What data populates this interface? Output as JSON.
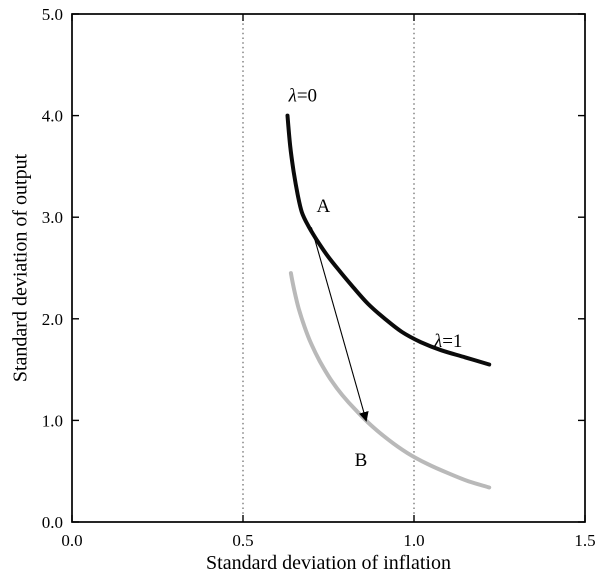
{
  "chart_data": {
    "type": "line",
    "title": "",
    "xlabel": "Standard deviation of inflation",
    "ylabel": "Standard deviation of output",
    "xlim": [
      0.0,
      1.5
    ],
    "ylim": [
      0.0,
      5.0
    ],
    "x_ticks": [
      0.0,
      0.5,
      1.0,
      1.5
    ],
    "x_tick_labels": [
      "0.0",
      "0.5",
      "1.0",
      "1.5"
    ],
    "y_ticks": [
      0.0,
      1.0,
      2.0,
      3.0,
      4.0,
      5.0
    ],
    "y_tick_labels": [
      "0.0",
      "1.0",
      "2.0",
      "3.0",
      "4.0",
      "5.0"
    ],
    "grid": {
      "vertical_dotted_at": [
        0.5,
        1.0
      ],
      "horizontal": false
    },
    "legend": "none",
    "axis_color": "#000000",
    "background": "#ffffff",
    "series": [
      {
        "name": "efficiency-frontier-black",
        "color": "#0b0b0b",
        "stroke_width": 4,
        "points": [
          [
            0.63,
            4.0
          ],
          [
            0.638,
            3.7
          ],
          [
            0.648,
            3.45
          ],
          [
            0.66,
            3.22
          ],
          [
            0.672,
            3.05
          ],
          [
            0.69,
            2.92
          ],
          [
            0.715,
            2.78
          ],
          [
            0.745,
            2.63
          ],
          [
            0.78,
            2.48
          ],
          [
            0.82,
            2.32
          ],
          [
            0.865,
            2.15
          ],
          [
            0.915,
            2.0
          ],
          [
            0.965,
            1.87
          ],
          [
            1.02,
            1.77
          ],
          [
            1.08,
            1.69
          ],
          [
            1.15,
            1.62
          ],
          [
            1.22,
            1.55
          ]
        ]
      },
      {
        "name": "improved-frontier-gray",
        "color": "#b9b9b9",
        "stroke_width": 4,
        "points": [
          [
            0.64,
            2.45
          ],
          [
            0.65,
            2.28
          ],
          [
            0.663,
            2.1
          ],
          [
            0.68,
            1.92
          ],
          [
            0.7,
            1.75
          ],
          [
            0.725,
            1.58
          ],
          [
            0.755,
            1.41
          ],
          [
            0.79,
            1.25
          ],
          [
            0.83,
            1.1
          ],
          [
            0.875,
            0.95
          ],
          [
            0.925,
            0.81
          ],
          [
            0.98,
            0.68
          ],
          [
            1.04,
            0.57
          ],
          [
            1.1,
            0.48
          ],
          [
            1.16,
            0.4
          ],
          [
            1.22,
            0.34
          ]
        ]
      }
    ],
    "annotations": [
      {
        "id": "lambda-0",
        "text": "λ=0",
        "x": 0.675,
        "y": 4.14
      },
      {
        "id": "point-a",
        "text": "A",
        "x": 0.735,
        "y": 3.05
      },
      {
        "id": "lambda-1",
        "text": "λ=1",
        "x": 1.1,
        "y": 1.72
      },
      {
        "id": "point-b",
        "text": "B",
        "x": 0.845,
        "y": 0.55
      }
    ],
    "arrow": {
      "from": [
        0.7,
        2.9
      ],
      "to": [
        0.86,
        1.0
      ],
      "color": "#000000"
    }
  }
}
